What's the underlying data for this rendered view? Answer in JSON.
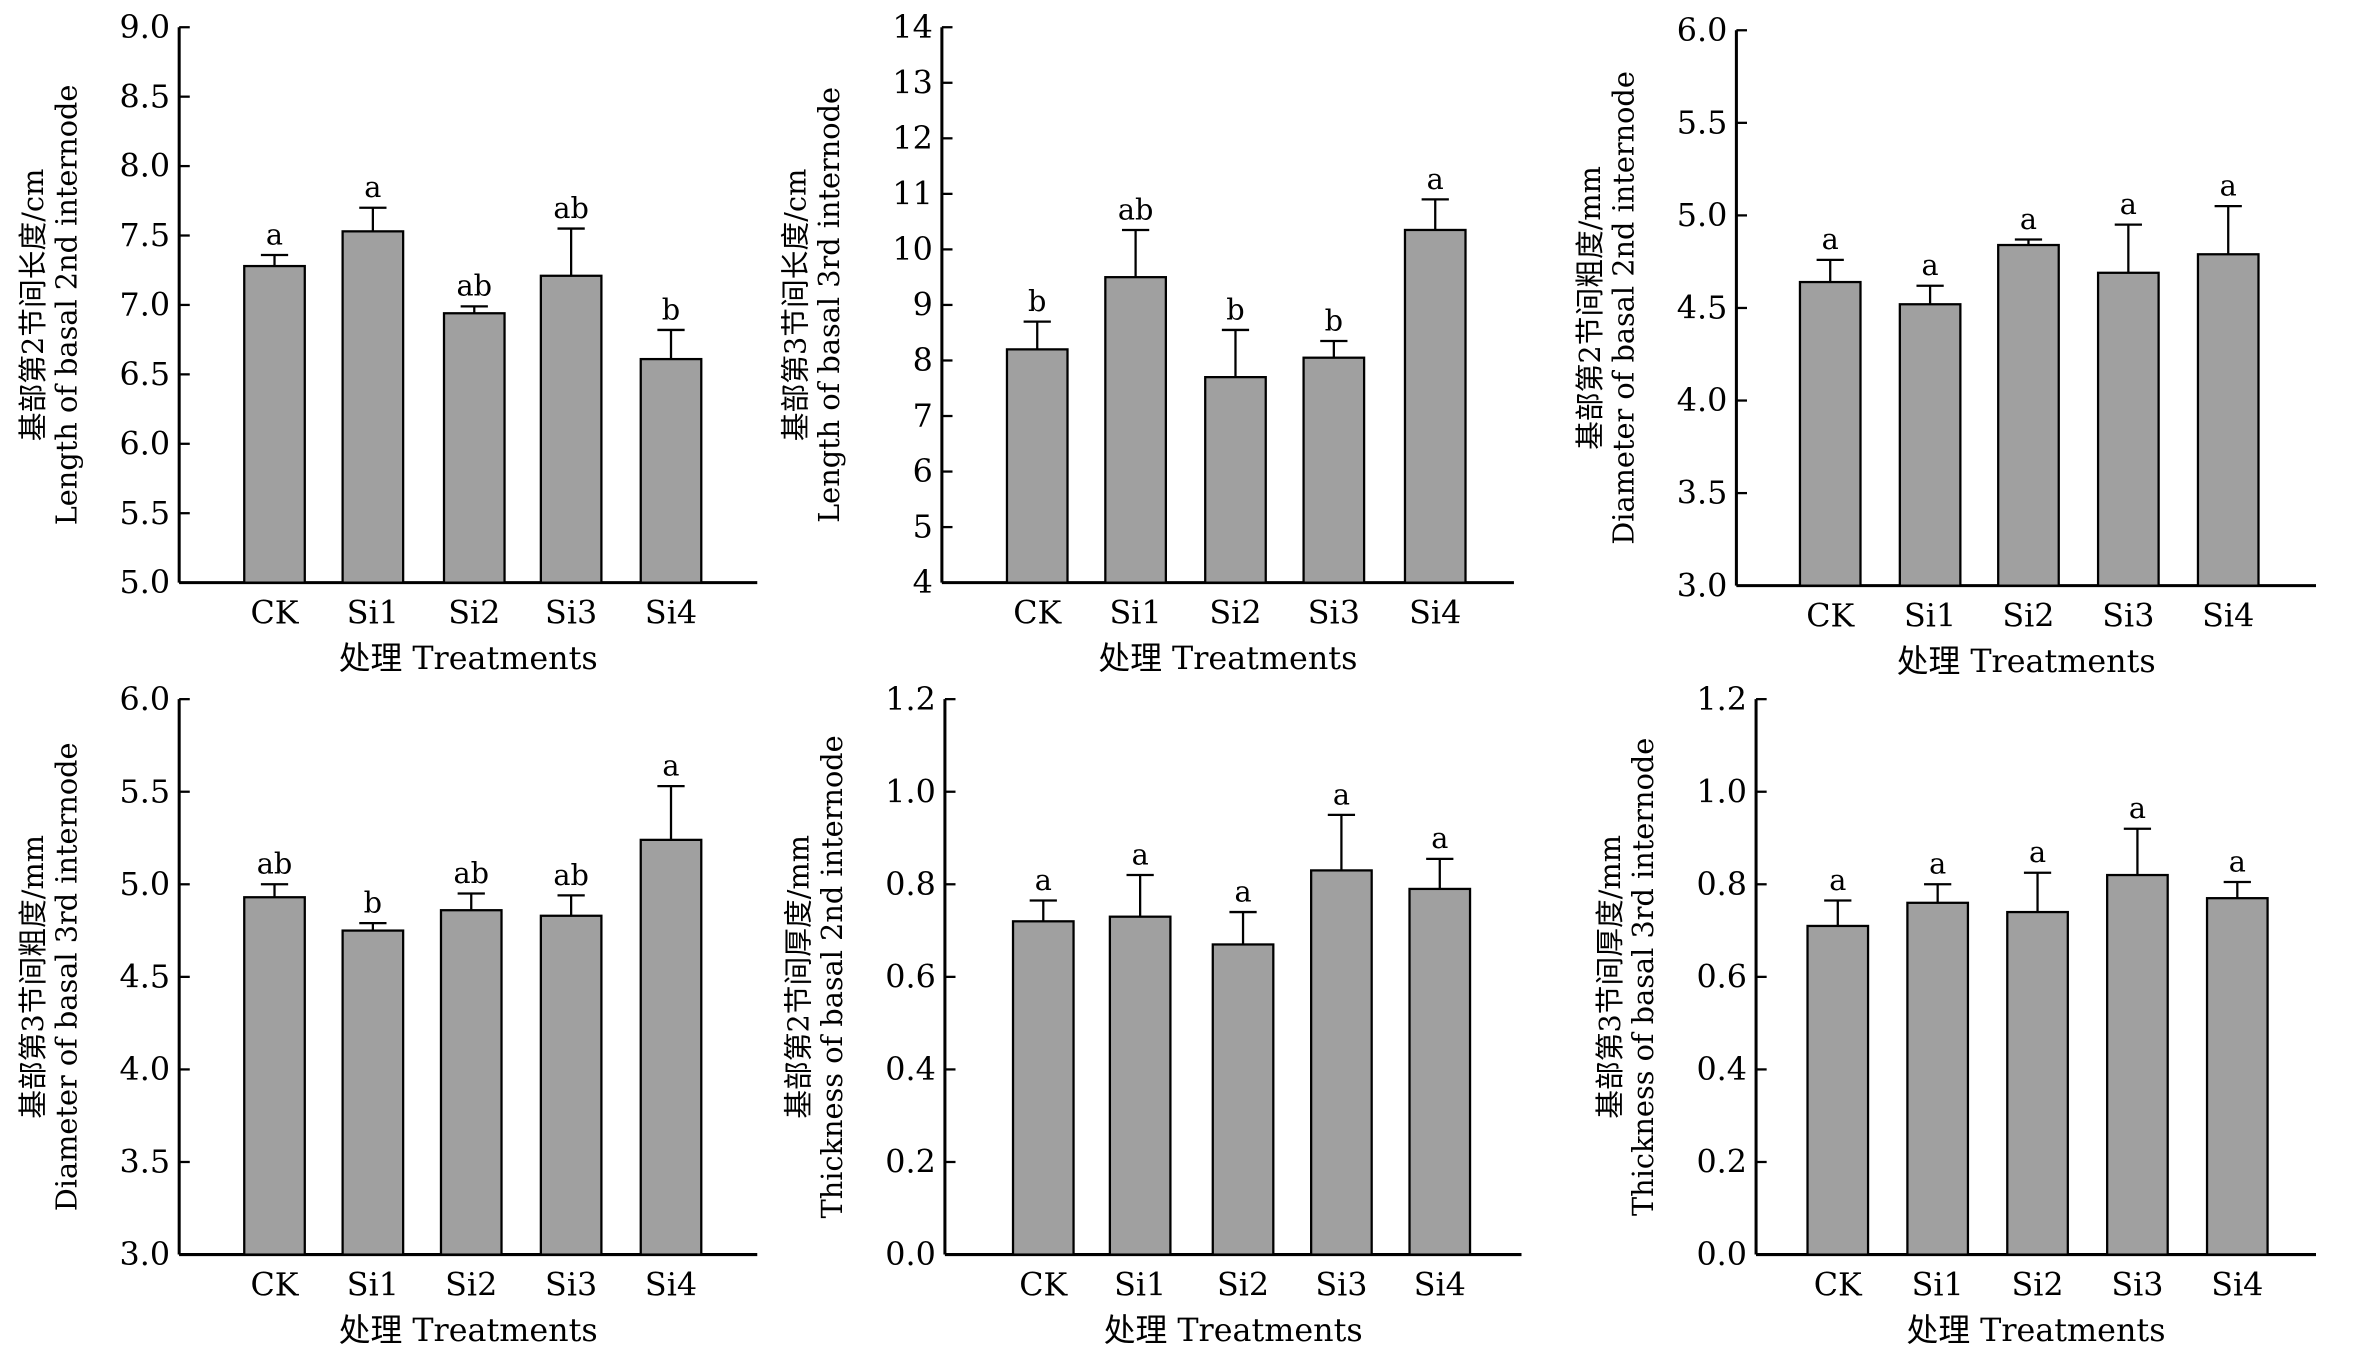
{
  "chart_data": [
    {
      "type": "bar",
      "categories": [
        "CK",
        "Si1",
        "Si2",
        "Si3",
        "Si4"
      ],
      "values": [
        7.28,
        7.53,
        6.94,
        7.21,
        6.61
      ],
      "errors": [
        0.08,
        0.17,
        0.05,
        0.34,
        0.21
      ],
      "letters": [
        "a",
        "a",
        "ab",
        "ab",
        "b"
      ],
      "ylabel_cn": "基部第2节间长度/cm",
      "ylabel_en": "Length of basal 2nd internode",
      "xlabel": "处理 Treatments",
      "ylim": [
        5.0,
        9.0
      ],
      "yticks": [
        "5.0",
        "5.5",
        "6.0",
        "6.5",
        "7.0",
        "7.5",
        "8.0",
        "8.5",
        "9.0"
      ]
    },
    {
      "type": "bar",
      "categories": [
        "CK",
        "Si1",
        "Si2",
        "Si3",
        "Si4"
      ],
      "values": [
        8.2,
        9.5,
        7.7,
        8.05,
        10.35
      ],
      "errors": [
        0.5,
        0.85,
        0.85,
        0.3,
        0.55
      ],
      "letters": [
        "b",
        "ab",
        "b",
        "b",
        "a"
      ],
      "ylabel_cn": "基部第3节间长度/cm",
      "ylabel_en": "Length of basal 3rd internode",
      "xlabel": "处理 Treatments",
      "ylim": [
        4,
        14
      ],
      "yticks": [
        "4",
        "5",
        "6",
        "7",
        "8",
        "9",
        "10",
        "11",
        "12",
        "13",
        "14"
      ]
    },
    {
      "type": "bar",
      "categories": [
        "CK",
        "Si1",
        "Si2",
        "Si3",
        "Si4"
      ],
      "values": [
        4.64,
        4.52,
        4.84,
        4.69,
        4.79
      ],
      "errors": [
        0.12,
        0.1,
        0.03,
        0.26,
        0.26
      ],
      "letters": [
        "a",
        "a",
        "a",
        "a",
        "a"
      ],
      "ylabel_cn": "基部第2节间粗度/mm",
      "ylabel_en": "Diameter of basal 2nd internode",
      "xlabel": "处理 Treatments",
      "ylim": [
        3.0,
        6.0
      ],
      "yticks": [
        "3.0",
        "3.5",
        "4.0",
        "4.5",
        "5.0",
        "5.5",
        "6.0"
      ]
    },
    {
      "type": "bar",
      "categories": [
        "CK",
        "Si1",
        "Si2",
        "Si3",
        "Si4"
      ],
      "values": [
        4.93,
        4.75,
        4.86,
        4.83,
        5.24
      ],
      "errors": [
        0.07,
        0.04,
        0.09,
        0.11,
        0.29
      ],
      "letters": [
        "ab",
        "b",
        "ab",
        "ab",
        "a"
      ],
      "ylabel_cn": "基部第3节间粗度/mm",
      "ylabel_en": "Diameter of basal 3rd internode",
      "xlabel": "处理 Treatments",
      "ylim": [
        3.0,
        6.0
      ],
      "yticks": [
        "3.0",
        "3.5",
        "4.0",
        "4.5",
        "5.0",
        "5.5",
        "6.0"
      ]
    },
    {
      "type": "bar",
      "categories": [
        "CK",
        "Si1",
        "Si2",
        "Si3",
        "Si4"
      ],
      "values": [
        0.72,
        0.73,
        0.67,
        0.83,
        0.79
      ],
      "errors": [
        0.045,
        0.09,
        0.07,
        0.12,
        0.065
      ],
      "letters": [
        "a",
        "a",
        "a",
        "a",
        "a"
      ],
      "ylabel_cn": "基部第2节间厚度/mm",
      "ylabel_en": "Thickness of basal 2nd internode",
      "xlabel": "处理 Treatments",
      "ylim": [
        0.0,
        1.2
      ],
      "yticks": [
        "0.0",
        "0.2",
        "0.4",
        "0.6",
        "0.8",
        "1.0",
        "1.2"
      ]
    },
    {
      "type": "bar",
      "categories": [
        "CK",
        "Si1",
        "Si2",
        "Si3",
        "Si4"
      ],
      "values": [
        0.71,
        0.76,
        0.74,
        0.82,
        0.77
      ],
      "errors": [
        0.055,
        0.04,
        0.085,
        0.1,
        0.035
      ],
      "letters": [
        "a",
        "a",
        "a",
        "a",
        "a"
      ],
      "ylabel_cn": "基部第3节间厚度/mm",
      "ylabel_en": "Thickness of basal 3rd internode",
      "xlabel": "处理 Treatments",
      "ylim": [
        0.0,
        1.2
      ],
      "yticks": [
        "0.0",
        "0.2",
        "0.4",
        "0.6",
        "0.8",
        "1.0",
        "1.2"
      ]
    }
  ],
  "colors": {
    "bar": "#a0a0a0",
    "axis": "#000000"
  }
}
